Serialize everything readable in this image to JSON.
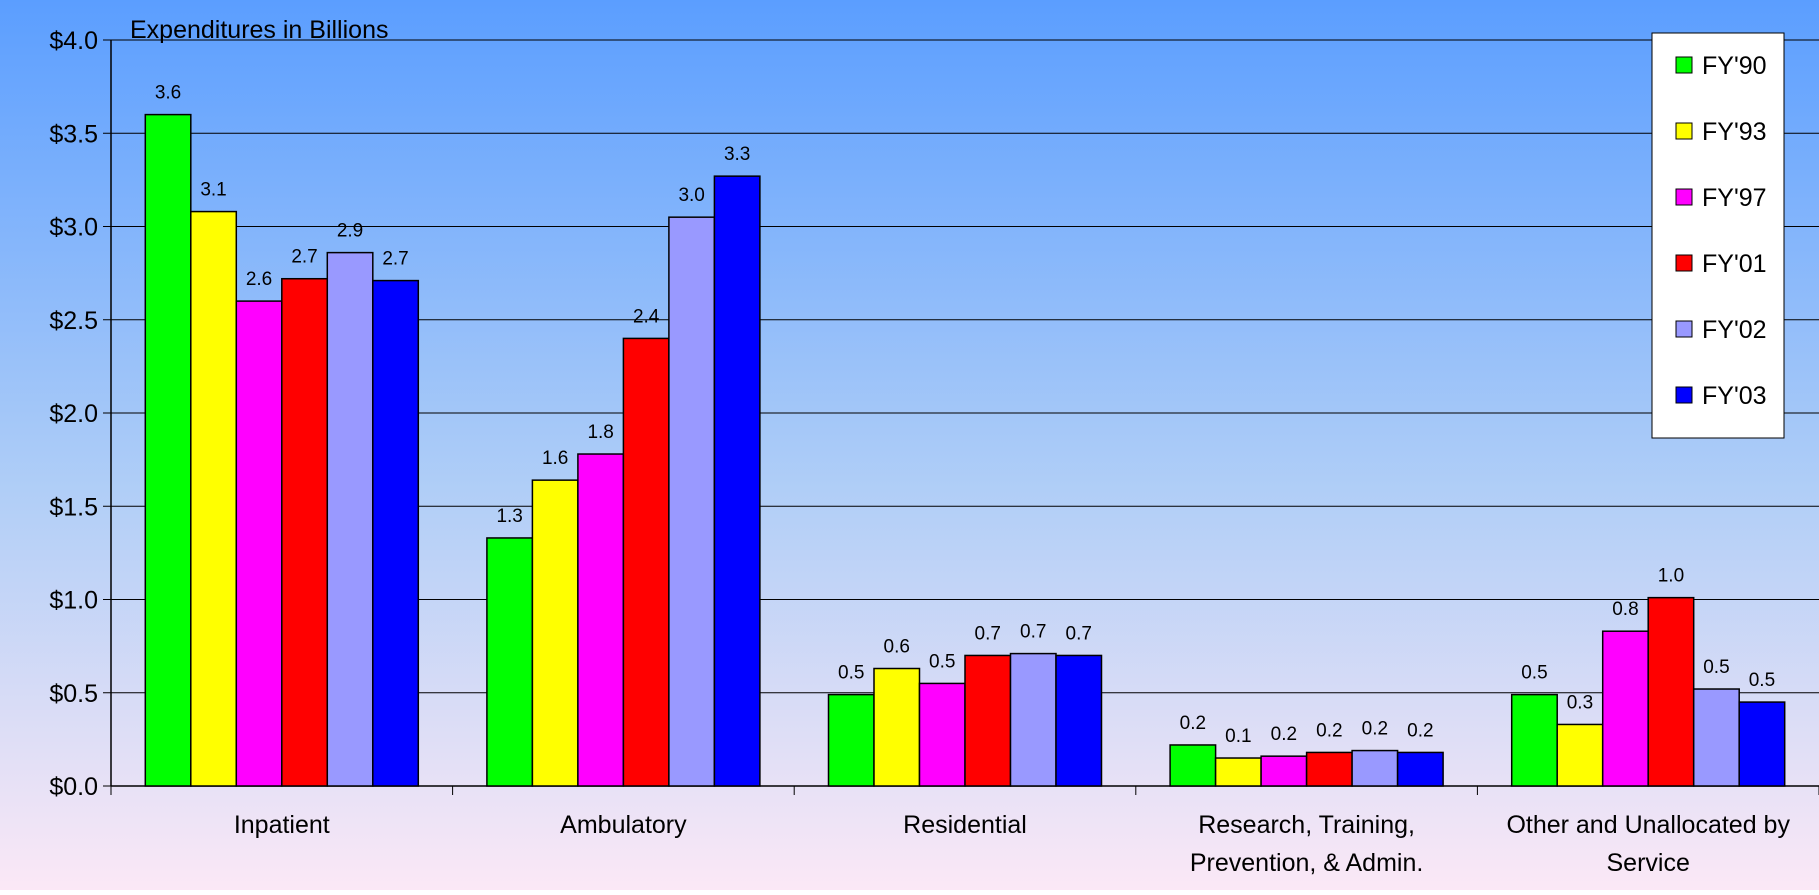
{
  "chart_data": {
    "type": "bar",
    "title": "Expenditures in Billions",
    "categories": [
      [
        "Inpatient"
      ],
      [
        "Ambulatory"
      ],
      [
        "Residential"
      ],
      [
        "Research, Training,",
        "Prevention, & Admin."
      ],
      [
        "Other and Unallocated by",
        "Service"
      ]
    ],
    "series": [
      {
        "name": "FY'90",
        "color": "#00ff00",
        "values": [
          3.6,
          1.33,
          0.49,
          0.22,
          0.49
        ],
        "labels": [
          "3.6",
          "1.3",
          "0.5",
          "0.2",
          "0.5"
        ]
      },
      {
        "name": "FY'93",
        "color": "#ffff00",
        "values": [
          3.08,
          1.64,
          0.63,
          0.15,
          0.33
        ],
        "labels": [
          "3.1",
          "1.6",
          "0.6",
          "0.1",
          "0.3"
        ]
      },
      {
        "name": "FY'97",
        "color": "#ff00ff",
        "values": [
          2.6,
          1.78,
          0.55,
          0.16,
          0.83
        ],
        "labels": [
          "2.6",
          "1.8",
          "0.5",
          "0.2",
          "0.8"
        ]
      },
      {
        "name": "FY'01",
        "color": "#ff0000",
        "values": [
          2.72,
          2.4,
          0.7,
          0.18,
          1.01
        ],
        "labels": [
          "2.7",
          "2.4",
          "0.7",
          "0.2",
          "1.0"
        ]
      },
      {
        "name": "FY'02",
        "color": "#9999ff",
        "values": [
          2.86,
          3.05,
          0.71,
          0.19,
          0.52
        ],
        "labels": [
          "2.9",
          "3.0",
          "0.7",
          "0.2",
          "0.5"
        ]
      },
      {
        "name": "FY'03",
        "color": "#0000ff",
        "values": [
          2.71,
          3.27,
          0.7,
          0.18,
          0.45
        ],
        "labels": [
          "2.7",
          "3.3",
          "0.7",
          "0.2",
          "0.5"
        ]
      }
    ],
    "ylim": [
      0,
      4
    ],
    "yticks": [
      "$0.0",
      "$0.5",
      "$1.0",
      "$1.5",
      "$2.0",
      "$2.5",
      "$3.0",
      "$3.5",
      "$4.0"
    ],
    "ytick_values": [
      0,
      0.5,
      1.0,
      1.5,
      2.0,
      2.5,
      3.0,
      3.5,
      4.0
    ],
    "grid": true,
    "legend_position": "top-right",
    "background": {
      "top": "#5b9eff",
      "bottom": "#fbe8f6"
    }
  }
}
